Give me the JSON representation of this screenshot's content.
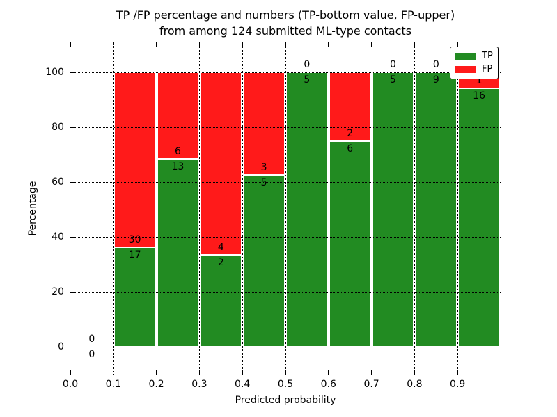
{
  "chart_data": {
    "type": "bar",
    "stacked": true,
    "title_lines": [
      "TP /FP percentage and numbers (TP-bottom value, FP-upper)",
      "from among 124 submitted ML-type contacts"
    ],
    "xlabel": "Predicted probability",
    "ylabel": "Percentage",
    "total_contacts": 124,
    "xlim": [
      0.0,
      1.0
    ],
    "ylim": [
      -10,
      111
    ],
    "x_tick_labels": [
      "0.0",
      "0.1",
      "0.2",
      "0.3",
      "0.4",
      "0.5",
      "0.6",
      "0.7",
      "0.8",
      "0.9"
    ],
    "x_tick_values": [
      0.0,
      0.1,
      0.2,
      0.3,
      0.4,
      0.5,
      0.6,
      0.7,
      0.8,
      0.9
    ],
    "y_ticks": [
      0,
      20,
      40,
      60,
      80,
      100
    ],
    "grid": "dotted",
    "bar_bin_width": 0.1,
    "series_note": "bars stacked to 100%; green = TP fraction, red = FP fraction; labels show raw counts (TP below boundary, FP above)",
    "bins": [
      {
        "range": [
          0.0,
          0.1
        ],
        "tp": 0,
        "fp": 0
      },
      {
        "range": [
          0.1,
          0.2
        ],
        "tp": 17,
        "fp": 30
      },
      {
        "range": [
          0.2,
          0.3
        ],
        "tp": 13,
        "fp": 6
      },
      {
        "range": [
          0.3,
          0.4
        ],
        "tp": 2,
        "fp": 4
      },
      {
        "range": [
          0.4,
          0.5
        ],
        "tp": 5,
        "fp": 3
      },
      {
        "range": [
          0.5,
          0.6
        ],
        "tp": 5,
        "fp": 0
      },
      {
        "range": [
          0.6,
          0.7
        ],
        "tp": 6,
        "fp": 2
      },
      {
        "range": [
          0.7,
          0.8
        ],
        "tp": 5,
        "fp": 0
      },
      {
        "range": [
          0.8,
          0.9
        ],
        "tp": 9,
        "fp": 0
      },
      {
        "range": [
          0.9,
          1.0
        ],
        "tp": 16,
        "fp": 1
      }
    ],
    "legend": {
      "position": "upper right",
      "entries": [
        {
          "label": "TP",
          "color": "#228b22"
        },
        {
          "label": "FP",
          "color": "#ff1a1a"
        }
      ]
    },
    "colors": {
      "tp": "#228b22",
      "fp": "#ff1a1a",
      "grid": "#000000",
      "text": "#000000",
      "background": "#ffffff",
      "bar_edge": "#ffffff"
    }
  }
}
